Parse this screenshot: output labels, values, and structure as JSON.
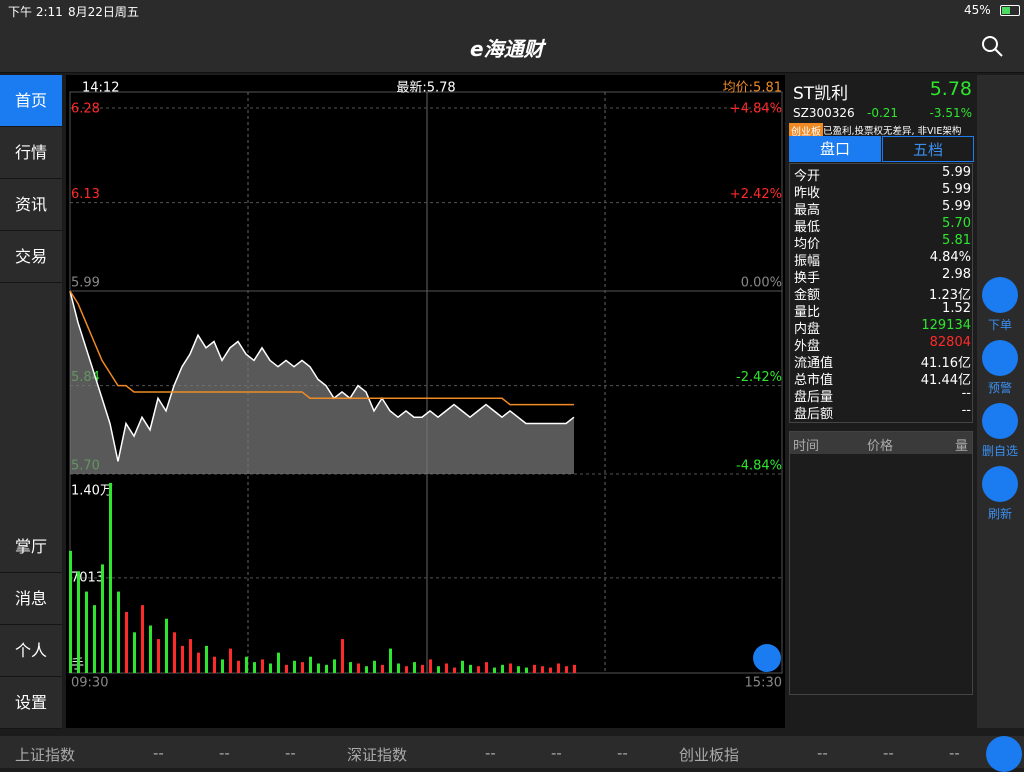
{
  "status": {
    "time": "下午 2:11",
    "date": "8月22日周五",
    "battery": "45%"
  },
  "header": {
    "logo": "e海通财"
  },
  "sidebar": {
    "top": [
      "首页",
      "行情",
      "资讯",
      "交易"
    ],
    "bottom": [
      "掌厅",
      "消息",
      "个人",
      "设置"
    ]
  },
  "chart_data": {
    "type": "line",
    "info": {
      "time": "14:12",
      "latest": "最新:5.78",
      "avg": "均价:5.81"
    },
    "ylim": [
      5.7,
      6.28
    ],
    "yticks": [
      5.7,
      5.84,
      5.99,
      6.13,
      6.28
    ],
    "ytick_text": [
      "5.70",
      "5.84",
      "5.99",
      "6.13",
      "6.28"
    ],
    "pct_labels": [
      "-4.84%",
      "-2.42%",
      "0.00%",
      "+2.42%",
      "+4.84%"
    ],
    "x_labels": [
      "09:30",
      "15:30"
    ],
    "series": [
      {
        "name": "价格",
        "color": "#ffffff",
        "values": [
          5.99,
          5.94,
          5.9,
          5.86,
          5.82,
          5.78,
          5.72,
          5.78,
          5.76,
          5.79,
          5.77,
          5.82,
          5.8,
          5.84,
          5.87,
          5.89,
          5.92,
          5.9,
          5.91,
          5.88,
          5.9,
          5.91,
          5.89,
          5.88,
          5.9,
          5.88,
          5.87,
          5.88,
          5.87,
          5.88,
          5.87,
          5.85,
          5.84,
          5.82,
          5.83,
          5.82,
          5.84,
          5.83,
          5.8,
          5.82,
          5.8,
          5.79,
          5.8,
          5.79,
          5.79,
          5.8,
          5.79,
          5.8,
          5.81,
          5.8,
          5.79,
          5.8,
          5.81,
          5.8,
          5.79,
          5.8,
          5.79,
          5.78,
          5.78,
          5.78,
          5.78,
          5.78,
          5.78,
          5.79
        ]
      },
      {
        "name": "均价",
        "color": "#f08a24",
        "values": [
          5.99,
          5.97,
          5.94,
          5.91,
          5.88,
          5.86,
          5.84,
          5.84,
          5.83,
          5.83,
          5.83,
          5.83,
          5.83,
          5.83,
          5.83,
          5.83,
          5.83,
          5.83,
          5.83,
          5.83,
          5.83,
          5.83,
          5.83,
          5.83,
          5.83,
          5.83,
          5.83,
          5.83,
          5.83,
          5.83,
          5.82,
          5.82,
          5.82,
          5.82,
          5.82,
          5.82,
          5.82,
          5.82,
          5.82,
          5.82,
          5.82,
          5.82,
          5.82,
          5.82,
          5.82,
          5.82,
          5.82,
          5.82,
          5.82,
          5.82,
          5.82,
          5.82,
          5.82,
          5.82,
          5.82,
          5.81,
          5.81,
          5.81,
          5.81,
          5.81,
          5.81,
          5.81,
          5.81,
          5.81
        ]
      }
    ],
    "volume": {
      "ylim": [
        0,
        14000
      ],
      "yticks": [
        {
          "value": 14000,
          "label": "1.40万"
        },
        7013
      ],
      "unit": "手",
      "values": [
        9000,
        7500,
        6000,
        5000,
        8000,
        14000,
        6000,
        4500,
        3000,
        5000,
        3500,
        2500,
        4000,
        3000,
        2000,
        2500,
        1500,
        2000,
        1200,
        1000,
        1800,
        900,
        1200,
        800,
        1000,
        700,
        1500,
        600,
        900,
        800,
        1200,
        700,
        600,
        1000,
        2500,
        800,
        700,
        500,
        900,
        600,
        1800,
        700,
        500,
        800,
        600,
        1000,
        500,
        700,
        400,
        900,
        600,
        500,
        800,
        400,
        600,
        700,
        500,
        400,
        600,
        500,
        400,
        700,
        500,
        600
      ]
    }
  },
  "quote": {
    "name": "ST凯利",
    "price": "5.78",
    "code": "SZ300326",
    "change": "-0.21",
    "pct": "-3.51%",
    "tag": "创业板",
    "note": "已盈利,投票权无差异, 非VIE架构",
    "tabs": [
      "盘口",
      "五档"
    ],
    "rows": [
      {
        "label": "今开",
        "value": "5.99",
        "color": "#ffffff"
      },
      {
        "label": "昨收",
        "value": "5.99",
        "color": "#ffffff"
      },
      {
        "label": "最高",
        "value": "5.99",
        "color": "#ffffff"
      },
      {
        "label": "最低",
        "value": "5.70",
        "color": "#2ee62e"
      },
      {
        "label": "均价",
        "value": "5.81",
        "color": "#2ee62e"
      },
      {
        "label": "振幅",
        "value": "4.84%",
        "color": "#ffffff"
      },
      {
        "label": "换手",
        "value": "2.98",
        "color": "#ffffff"
      },
      {
        "label": "金额",
        "value": "1.23亿",
        "color": "#ffffff"
      },
      {
        "label": "量比",
        "value": "1.52",
        "color": "#ffffff"
      },
      {
        "label": "内盘",
        "value": "129134",
        "color": "#2ee62e"
      },
      {
        "label": "外盘",
        "value": "82804",
        "color": "#ff2a2a"
      },
      {
        "label": "流通值",
        "value": "41.16亿",
        "color": "#ffffff"
      },
      {
        "label": "总市值",
        "value": "41.44亿",
        "color": "#ffffff"
      },
      {
        "label": "盘后量",
        "value": "--",
        "color": "#ffffff"
      },
      {
        "label": "盘后额",
        "value": "--",
        "color": "#ffffff"
      }
    ],
    "trade_header": [
      "时间",
      "价格",
      "量"
    ]
  },
  "actions": [
    "下单",
    "预警",
    "删自选",
    "刷新"
  ],
  "footer": [
    {
      "name": "上证指数",
      "values": [
        "--",
        "--",
        "--"
      ]
    },
    {
      "name": "深证指数",
      "values": [
        "--",
        "--",
        "--"
      ]
    },
    {
      "name": "创业板指",
      "values": [
        "--",
        "--",
        "--"
      ]
    }
  ]
}
